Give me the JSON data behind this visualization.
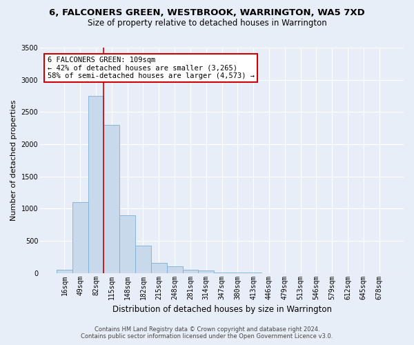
{
  "title": "6, FALCONERS GREEN, WESTBROOK, WARRINGTON, WA5 7XD",
  "subtitle": "Size of property relative to detached houses in Warrington",
  "xlabel": "Distribution of detached houses by size in Warrington",
  "ylabel": "Number of detached properties",
  "bar_color": "#c8d9ec",
  "bar_edge_color": "#7aafd4",
  "background_color": "#e8eef7",
  "plot_bg_color": "#e8eef7",
  "categories": [
    "16sqm",
    "49sqm",
    "82sqm",
    "115sqm",
    "148sqm",
    "182sqm",
    "215sqm",
    "248sqm",
    "281sqm",
    "314sqm",
    "347sqm",
    "380sqm",
    "413sqm",
    "446sqm",
    "479sqm",
    "513sqm",
    "546sqm",
    "579sqm",
    "612sqm",
    "645sqm",
    "678sqm"
  ],
  "values": [
    50,
    1100,
    2750,
    2300,
    900,
    430,
    160,
    100,
    55,
    35,
    12,
    5,
    2,
    1,
    0,
    0,
    0,
    0,
    0,
    0,
    0
  ],
  "ylim": [
    0,
    3500
  ],
  "yticks": [
    0,
    500,
    1000,
    1500,
    2000,
    2500,
    3000,
    3500
  ],
  "vline_x": 2.5,
  "vline_color": "#cc0000",
  "annotation_text": "6 FALCONERS GREEN: 109sqm\n← 42% of detached houses are smaller (3,265)\n58% of semi-detached houses are larger (4,573) →",
  "annotation_box_color": "white",
  "annotation_box_edge": "#cc0000",
  "footer_line1": "Contains HM Land Registry data © Crown copyright and database right 2024.",
  "footer_line2": "Contains public sector information licensed under the Open Government Licence v3.0.",
  "title_fontsize": 9.5,
  "subtitle_fontsize": 8.5,
  "tick_fontsize": 7,
  "ylabel_fontsize": 8,
  "xlabel_fontsize": 8.5,
  "annotation_fontsize": 7.5,
  "footer_fontsize": 6
}
